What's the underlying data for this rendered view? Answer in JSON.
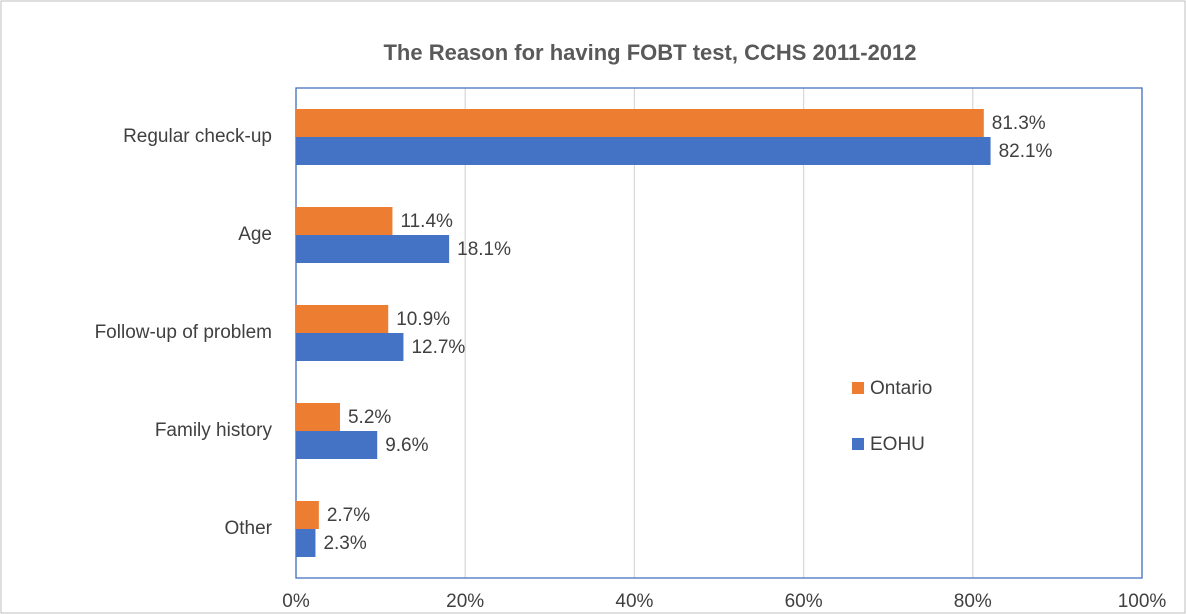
{
  "chart_data": {
    "type": "bar",
    "orientation": "horizontal",
    "title": "The Reason for having FOBT test, CCHS 2011-2012",
    "categories": [
      "Regular check-up",
      "Age",
      "Follow-up of problem",
      "Family history",
      "Other"
    ],
    "series": [
      {
        "name": "Ontario",
        "color": "#ed7d31",
        "values": [
          81.3,
          11.4,
          10.9,
          5.2,
          2.7
        ],
        "value_labels": [
          "81.3%",
          "11.4%",
          "10.9%",
          "5.2%",
          "2.7%"
        ]
      },
      {
        "name": "EOHU",
        "color": "#4472c4",
        "values": [
          82.1,
          18.1,
          12.7,
          9.6,
          2.3
        ],
        "value_labels": [
          "82.1%",
          "18.1%",
          "12.7%",
          "9.6%",
          "2.3%"
        ]
      }
    ],
    "xlim": [
      0,
      100
    ],
    "xticks": [
      {
        "value": 0,
        "label": "0%"
      },
      {
        "value": 20,
        "label": "20%"
      },
      {
        "value": 40,
        "label": "40%"
      },
      {
        "value": 60,
        "label": "60%"
      },
      {
        "value": 80,
        "label": "80%"
      },
      {
        "value": 100,
        "label": "100%"
      }
    ],
    "grid": true
  }
}
